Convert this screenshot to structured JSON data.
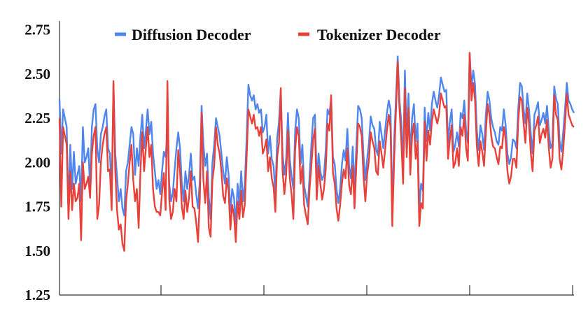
{
  "chart_data": {
    "type": "line",
    "title": "",
    "xlabel": "",
    "ylabel": "",
    "ylim": [
      1.25,
      2.8
    ],
    "yticks": [
      1.25,
      1.5,
      1.75,
      2.0,
      2.25,
      2.5,
      2.75
    ],
    "ytick_labels": [
      "1.25",
      "1.50",
      "1.75",
      "2.00",
      "2.25",
      "2.50",
      "2.75"
    ],
    "grid": false,
    "legend_position": "top",
    "x_tick_labels_shown": false,
    "series": [
      {
        "name": "Diffusion Decoder",
        "color": "#4f86ee",
        "values": [
          2.36,
          2.05,
          2.3,
          2.25,
          2.2,
          1.72,
          2.1,
          1.85,
          2.06,
          1.88,
          1.93,
          1.98,
          1.78,
          2.2,
          2.0,
          2.03,
          2.08,
          1.86,
          2.2,
          2.3,
          2.33,
          2.08,
          2.0,
          2.16,
          2.2,
          2.26,
          2.3,
          2.08,
          2.05,
          1.83,
          2.44,
          2.05,
          1.92,
          1.78,
          1.85,
          1.74,
          1.7,
          1.95,
          2.0,
          2.1,
          2.2,
          2.16,
          1.93,
          2.08,
          1.98,
          2.15,
          2.27,
          2.08,
          2.18,
          2.3,
          2.16,
          2.23,
          2.05,
          1.95,
          1.85,
          1.9,
          1.82,
          1.95,
          2.06,
          2.03,
          2.19,
          1.88,
          1.78,
          1.83,
          1.96,
          2.08,
          2.17,
          2.08,
          1.88,
          1.78,
          1.95,
          1.85,
          1.93,
          2.05,
          1.9,
          1.92,
          1.82,
          1.74,
          1.9,
          2.32,
          2.1,
          1.98,
          2.05,
          1.8,
          1.68,
          2.0,
          2.1,
          2.25,
          2.2,
          2.15,
          2.05,
          1.95,
          1.88,
          2.03,
          1.93,
          1.72,
          1.85,
          1.8,
          1.65,
          1.88,
          1.76,
          1.95,
          1.78,
          1.88,
          2.13,
          2.44,
          2.38,
          2.35,
          2.38,
          2.3,
          2.33,
          2.28,
          2.3,
          2.17,
          2.2,
          2.27,
          2.05,
          2.15,
          2.02,
          1.98,
          1.82,
          2.14,
          2.23,
          2.41,
          2.05,
          1.93,
          2.02,
          2.28,
          2.02,
          1.92,
          1.85,
          2.18,
          2.3,
          2.25,
          1.99,
          2.1,
          1.87,
          1.81,
          1.75,
          1.92,
          2.1,
          2.25,
          2.27,
          1.9,
          2.05,
          1.95,
          1.9,
          1.93,
          2.07,
          2.3,
          2.27,
          2.36,
          2.03,
          1.99,
          1.85,
          1.77,
          1.85,
          1.99,
          2.07,
          2.01,
          2.19,
          1.98,
          1.91,
          2.09,
          1.85,
          2.09,
          2.32,
          2.3,
          2.25,
          2.04,
          1.9,
          2.02,
          2.11,
          2.26,
          2.21,
          2.19,
          2.07,
          2.04,
          2.23,
          2.16,
          2.08,
          2.18,
          2.28,
          2.35,
          2.3,
          1.73,
          2.12,
          2.36,
          2.6,
          2.35,
          2.23,
          1.98,
          2.52,
          2.13,
          2.39,
          2.03,
          2.25,
          2.33,
          2.12,
          2.22,
          1.74,
          1.88,
          1.84,
          2.31,
          2.12,
          2.28,
          2.18,
          2.33,
          2.4,
          2.35,
          2.31,
          2.38,
          2.48,
          2.44,
          2.4,
          2.41,
          2.11,
          2.23,
          2.3,
          2.06,
          2.1,
          2.17,
          2.09,
          2.28,
          2.25,
          2.35,
          2.18,
          2.11,
          2.62,
          2.43,
          2.52,
          2.44,
          2.18,
          2.07,
          2.21,
          2.16,
          2.07,
          2.27,
          2.4,
          2.35,
          2.25,
          2.2,
          2.17,
          2.12,
          2.1,
          2.2,
          2.18,
          2.3,
          2.21,
          2.05,
          1.99,
          2.03,
          2.13,
          2.12,
          2.08,
          2.3,
          2.45,
          2.43,
          2.3,
          2.22,
          2.39,
          2.3,
          2.16,
          2.05,
          2.27,
          2.3,
          2.34,
          2.21,
          2.24,
          2.28,
          2.22,
          2.32,
          2.18,
          2.08,
          2.11,
          2.43,
          2.36,
          2.33,
          2.12,
          2.06,
          2.17,
          2.3,
          2.45,
          2.35,
          2.33,
          2.3,
          2.28
        ]
      },
      {
        "name": "Tokenizer Decoder",
        "color": "#e8413a",
        "values": [
          2.25,
          1.75,
          2.2,
          2.15,
          2.1,
          1.68,
          1.95,
          1.73,
          1.88,
          1.78,
          1.8,
          1.88,
          1.56,
          2.0,
          1.85,
          1.88,
          1.92,
          1.8,
          2.05,
          2.15,
          2.2,
          1.68,
          1.76,
          2.0,
          2.1,
          2.16,
          2.2,
          1.95,
          1.96,
          1.73,
          2.46,
          1.95,
          1.73,
          1.62,
          1.65,
          1.54,
          1.5,
          1.78,
          1.88,
          2.0,
          2.1,
          1.9,
          1.78,
          1.85,
          1.63,
          1.95,
          2.17,
          1.95,
          2.08,
          2.2,
          2.03,
          2.1,
          1.85,
          1.75,
          1.72,
          1.72,
          1.7,
          1.83,
          1.94,
          1.73,
          2.46,
          1.79,
          1.68,
          1.72,
          1.85,
          1.78,
          2.07,
          1.95,
          1.75,
          1.68,
          1.84,
          1.72,
          1.8,
          1.95,
          1.75,
          1.74,
          1.66,
          1.55,
          1.79,
          2.28,
          1.9,
          1.77,
          1.95,
          1.63,
          1.58,
          1.9,
          1.98,
          2.2,
          2.1,
          2.05,
          1.95,
          1.81,
          1.77,
          1.91,
          1.84,
          1.62,
          1.76,
          1.7,
          1.55,
          1.78,
          1.68,
          1.84,
          1.69,
          1.76,
          2.02,
          2.3,
          2.26,
          2.22,
          2.27,
          2.19,
          2.2,
          2.15,
          2.2,
          2.05,
          2.08,
          2.13,
          1.95,
          2.03,
          1.91,
          1.86,
          1.72,
          2.03,
          2.11,
          2.42,
          1.95,
          1.82,
          1.93,
          2.18,
          1.91,
          1.82,
          1.68,
          2.07,
          2.2,
          2.15,
          1.88,
          1.98,
          1.76,
          1.7,
          1.65,
          1.85,
          1.98,
          2.13,
          2.19,
          1.79,
          1.98,
          1.88,
          1.79,
          1.85,
          1.96,
          2.22,
          2.18,
          2.38,
          1.94,
          1.88,
          1.74,
          1.67,
          1.76,
          1.88,
          1.96,
          1.91,
          2.08,
          1.87,
          1.82,
          1.98,
          1.74,
          1.98,
          2.22,
          2.2,
          2.15,
          1.92,
          1.78,
          1.93,
          2.01,
          2.17,
          2.12,
          2.08,
          1.95,
          1.93,
          2.12,
          2.05,
          1.97,
          2.07,
          2.18,
          2.27,
          2.2,
          1.64,
          2.01,
          2.28,
          2.57,
          2.3,
          2.12,
          1.88,
          2.42,
          2.03,
          2.31,
          1.93,
          2.15,
          2.22,
          2.02,
          2.12,
          1.64,
          1.77,
          1.74,
          2.23,
          2.01,
          2.18,
          2.1,
          2.23,
          2.3,
          2.26,
          2.22,
          2.27,
          2.39,
          2.35,
          2.31,
          2.32,
          2.02,
          2.13,
          2.21,
          1.97,
          2.0,
          2.08,
          1.98,
          2.2,
          2.15,
          2.27,
          2.08,
          2.01,
          2.62,
          2.35,
          2.45,
          2.35,
          2.09,
          1.98,
          2.12,
          2.06,
          1.98,
          2.17,
          2.33,
          2.27,
          2.15,
          2.09,
          2.08,
          2.03,
          1.99,
          2.09,
          2.08,
          2.2,
          2.13,
          1.95,
          1.88,
          1.92,
          2.02,
          2.02,
          1.97,
          2.23,
          2.37,
          2.35,
          2.22,
          2.11,
          2.31,
          2.22,
          2.05,
          1.95,
          2.18,
          2.21,
          2.26,
          2.11,
          2.16,
          2.19,
          2.14,
          2.24,
          2.08,
          1.97,
          2.02,
          2.38,
          2.27,
          2.24,
          2.02,
          1.96,
          2.07,
          2.22,
          2.39,
          2.27,
          2.24,
          2.21,
          2.2
        ]
      }
    ]
  }
}
